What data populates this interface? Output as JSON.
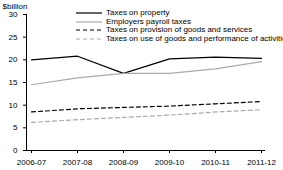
{
  "chart_data": {
    "type": "line",
    "y_label": "$billion",
    "categories": [
      "2006-07",
      "2007-08",
      "2008-09",
      "2009-10",
      "2010-11",
      "2011-12"
    ],
    "series": [
      {
        "name": "Taxes on property",
        "color": "#000000",
        "line_style": "solid",
        "values": [
          20,
          20.8,
          17,
          20.2,
          20.6,
          20.3
        ]
      },
      {
        "name": "Employers payroll taxes",
        "color": "#aaaaaa",
        "line_style": "solid",
        "values": [
          14.5,
          16,
          17,
          17,
          18,
          19.6
        ]
      },
      {
        "name": "Taxes on provision of goods and services",
        "color": "#000000",
        "line_style": "dashed",
        "values": [
          8.5,
          9.2,
          9.5,
          9.8,
          10.3,
          10.8
        ]
      },
      {
        "name": "Taxes on use of goods and performance of activities",
        "color": "#aaaaaa",
        "line_style": "dashed",
        "values": [
          6.2,
          6.8,
          7.3,
          7.8,
          8.5,
          9
        ]
      }
    ],
    "ylim": [
      0,
      30
    ],
    "yticks": [
      0,
      5,
      10,
      15,
      20,
      25,
      30
    ],
    "legend": "top",
    "grid": false
  }
}
